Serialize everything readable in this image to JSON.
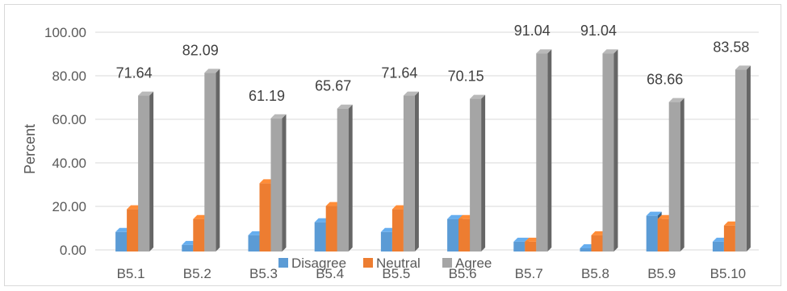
{
  "chart_data": {
    "type": "bar",
    "categories": [
      "B5.1",
      "B5.2",
      "B5.3",
      "B5.4",
      "B5.5",
      "B5.6",
      "B5.7",
      "B5.8",
      "B5.9",
      "B5.10"
    ],
    "series": [
      {
        "name": "Disagree",
        "color": "#5b9bd5",
        "values": [
          8.96,
          2.99,
          7.46,
          13.43,
          8.96,
          14.93,
          4.48,
          1.49,
          16.42,
          4.48
        ]
      },
      {
        "name": "Neutral",
        "color": "#ed7d31",
        "values": [
          19.4,
          14.93,
          31.34,
          20.9,
          19.4,
          14.93,
          4.48,
          7.46,
          14.93,
          11.94
        ]
      },
      {
        "name": "Agree",
        "color": "#a5a5a5",
        "values": [
          71.64,
          82.09,
          61.19,
          65.67,
          71.64,
          70.15,
          91.04,
          91.04,
          68.66,
          83.58
        ]
      }
    ],
    "data_labels": [
      "71.64",
      "82.09",
      "61.19",
      "65.67",
      "71.64",
      "70.15",
      "91.04",
      "91.04",
      "68.66",
      "83.58"
    ],
    "ylabel": "Percent",
    "xlabel": "",
    "ylim": [
      0,
      100
    ],
    "yticks": [
      "0.00",
      "20.00",
      "40.00",
      "60.00",
      "80.00",
      "100.00"
    ],
    "grid": true,
    "legend_position": "bottom"
  }
}
